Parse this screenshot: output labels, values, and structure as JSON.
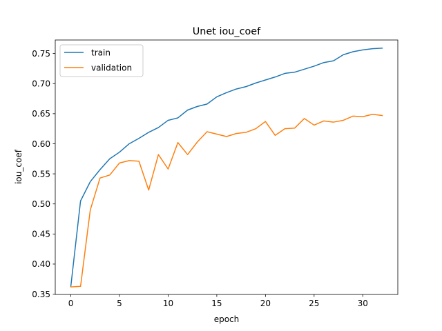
{
  "chart_data": {
    "type": "line",
    "title": "Unet iou_coef",
    "xlabel": "epoch",
    "ylabel": "iou_coef",
    "xlim": [
      -1.6,
      33.6
    ],
    "ylim": [
      0.3495,
      0.7725
    ],
    "xticks": [
      0,
      5,
      10,
      15,
      20,
      25,
      30
    ],
    "yticks": [
      0.35,
      0.4,
      0.45,
      0.5,
      0.55,
      0.6,
      0.65,
      0.7,
      0.75
    ],
    "x": [
      0,
      1,
      2,
      3,
      4,
      5,
      6,
      7,
      8,
      9,
      10,
      11,
      12,
      13,
      14,
      15,
      16,
      17,
      18,
      19,
      20,
      21,
      22,
      23,
      24,
      25,
      26,
      27,
      28,
      29,
      30,
      31,
      32
    ],
    "series": [
      {
        "name": "train",
        "color": "#1f77b4",
        "values": [
          0.363,
          0.505,
          0.537,
          0.557,
          0.575,
          0.586,
          0.6,
          0.609,
          0.619,
          0.627,
          0.639,
          0.643,
          0.656,
          0.662,
          0.666,
          0.678,
          0.685,
          0.691,
          0.695,
          0.701,
          0.706,
          0.711,
          0.717,
          0.719,
          0.724,
          0.729,
          0.735,
          0.738,
          0.748,
          0.753,
          0.756,
          0.758,
          0.759
        ]
      },
      {
        "name": "validation",
        "color": "#ff7f0e",
        "values": [
          0.362,
          0.363,
          0.49,
          0.543,
          0.548,
          0.568,
          0.572,
          0.571,
          0.523,
          0.582,
          0.558,
          0.602,
          0.582,
          0.603,
          0.62,
          0.616,
          0.612,
          0.617,
          0.619,
          0.625,
          0.637,
          0.614,
          0.625,
          0.626,
          0.642,
          0.631,
          0.638,
          0.636,
          0.639,
          0.646,
          0.645,
          0.649,
          0.647
        ]
      }
    ],
    "legend_position": "top-left",
    "grid": false
  }
}
